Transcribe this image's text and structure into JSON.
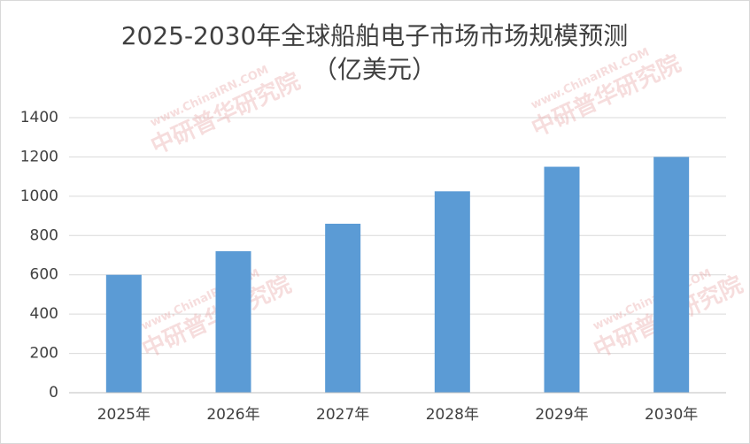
{
  "chart_data": {
    "type": "bar",
    "title": "2025-2030年全球船舶电子市场市场规模预测",
    "subtitle": "（亿美元）",
    "categories": [
      "2025年",
      "2026年",
      "2027年",
      "2028年",
      "2029年",
      "2030年"
    ],
    "values": [
      600,
      720,
      860,
      1025,
      1150,
      1200
    ],
    "color": "#5b9bd5",
    "ylim": [
      0,
      1400
    ],
    "yticks": [
      0,
      200,
      400,
      600,
      800,
      1000,
      1200,
      1400
    ],
    "grid": true
  },
  "watermark": {
    "site": "www.ChinaIRN.COM",
    "name": "中研普华研究院"
  }
}
